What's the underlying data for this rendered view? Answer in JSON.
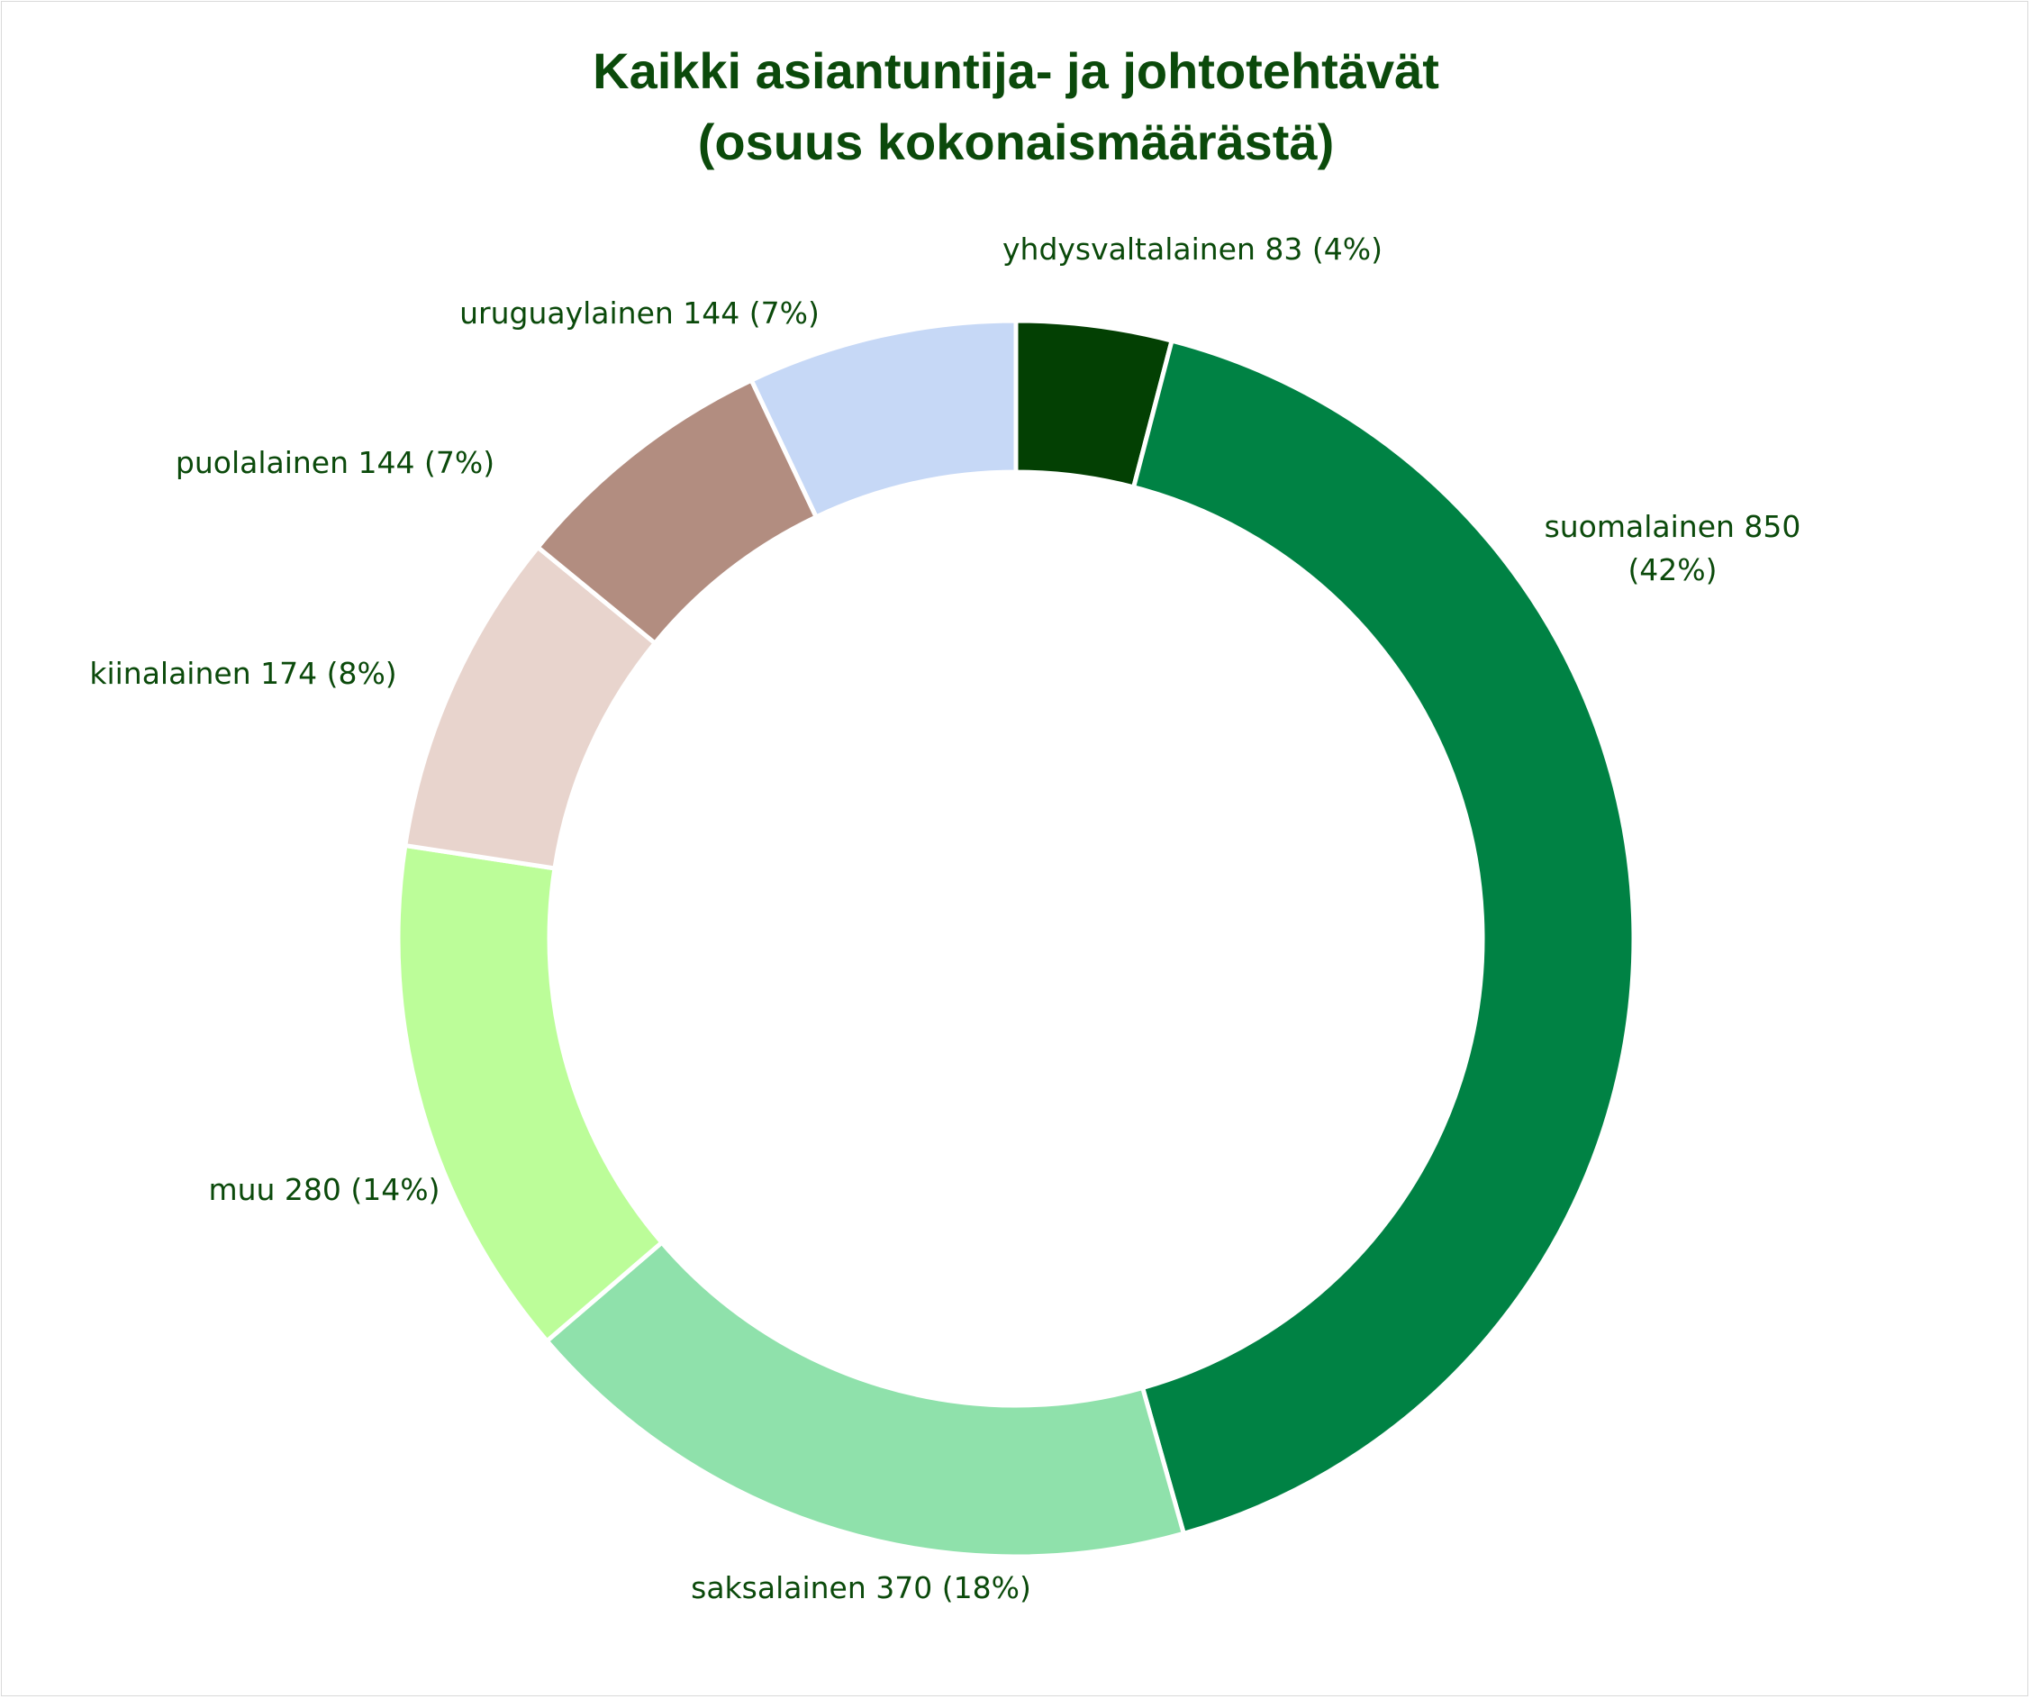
{
  "chart_data": {
    "type": "pie",
    "title_lines": [
      "Kaikki asiantuntija- ja johtotehtävät",
      "(osuus kokonaismäärästä)"
    ],
    "slices": [
      {
        "name": "yhdysvaltalainen",
        "value": 83,
        "percent": 4,
        "color": "#034003",
        "label_lines": [
          "yhdysvaltalainen 83 (4%)"
        ]
      },
      {
        "name": "suomalainen",
        "value": 850,
        "percent": 42,
        "color": "#008244",
        "label_lines": [
          "suomalainen 850",
          "(42%)"
        ]
      },
      {
        "name": "saksalainen",
        "value": 370,
        "percent": 18,
        "color": "#8fe1ab",
        "label_lines": [
          "saksalainen 370 (18%)"
        ]
      },
      {
        "name": "muu",
        "value": 280,
        "percent": 14,
        "color": "#bcfd99",
        "label_lines": [
          "muu 280 (14%)"
        ]
      },
      {
        "name": "kiinalainen",
        "value": 174,
        "percent": 8,
        "color": "#e8d4cd",
        "label_lines": [
          "kiinalainen 174 (8%)"
        ]
      },
      {
        "name": "puolalainen",
        "value": 144,
        "percent": 7,
        "color": "#b28d80",
        "label_lines": [
          "puolalainen 144 (7%)"
        ]
      },
      {
        "name": "uruguaylainen",
        "value": 144,
        "percent": 7,
        "color": "#c6d8f6",
        "label_lines": [
          "uruguaylainen 144 (7%)"
        ]
      }
    ],
    "style": "donut",
    "start_angle": "top, clockwise",
    "legend": "none",
    "text_color": "#0b4a0b"
  }
}
